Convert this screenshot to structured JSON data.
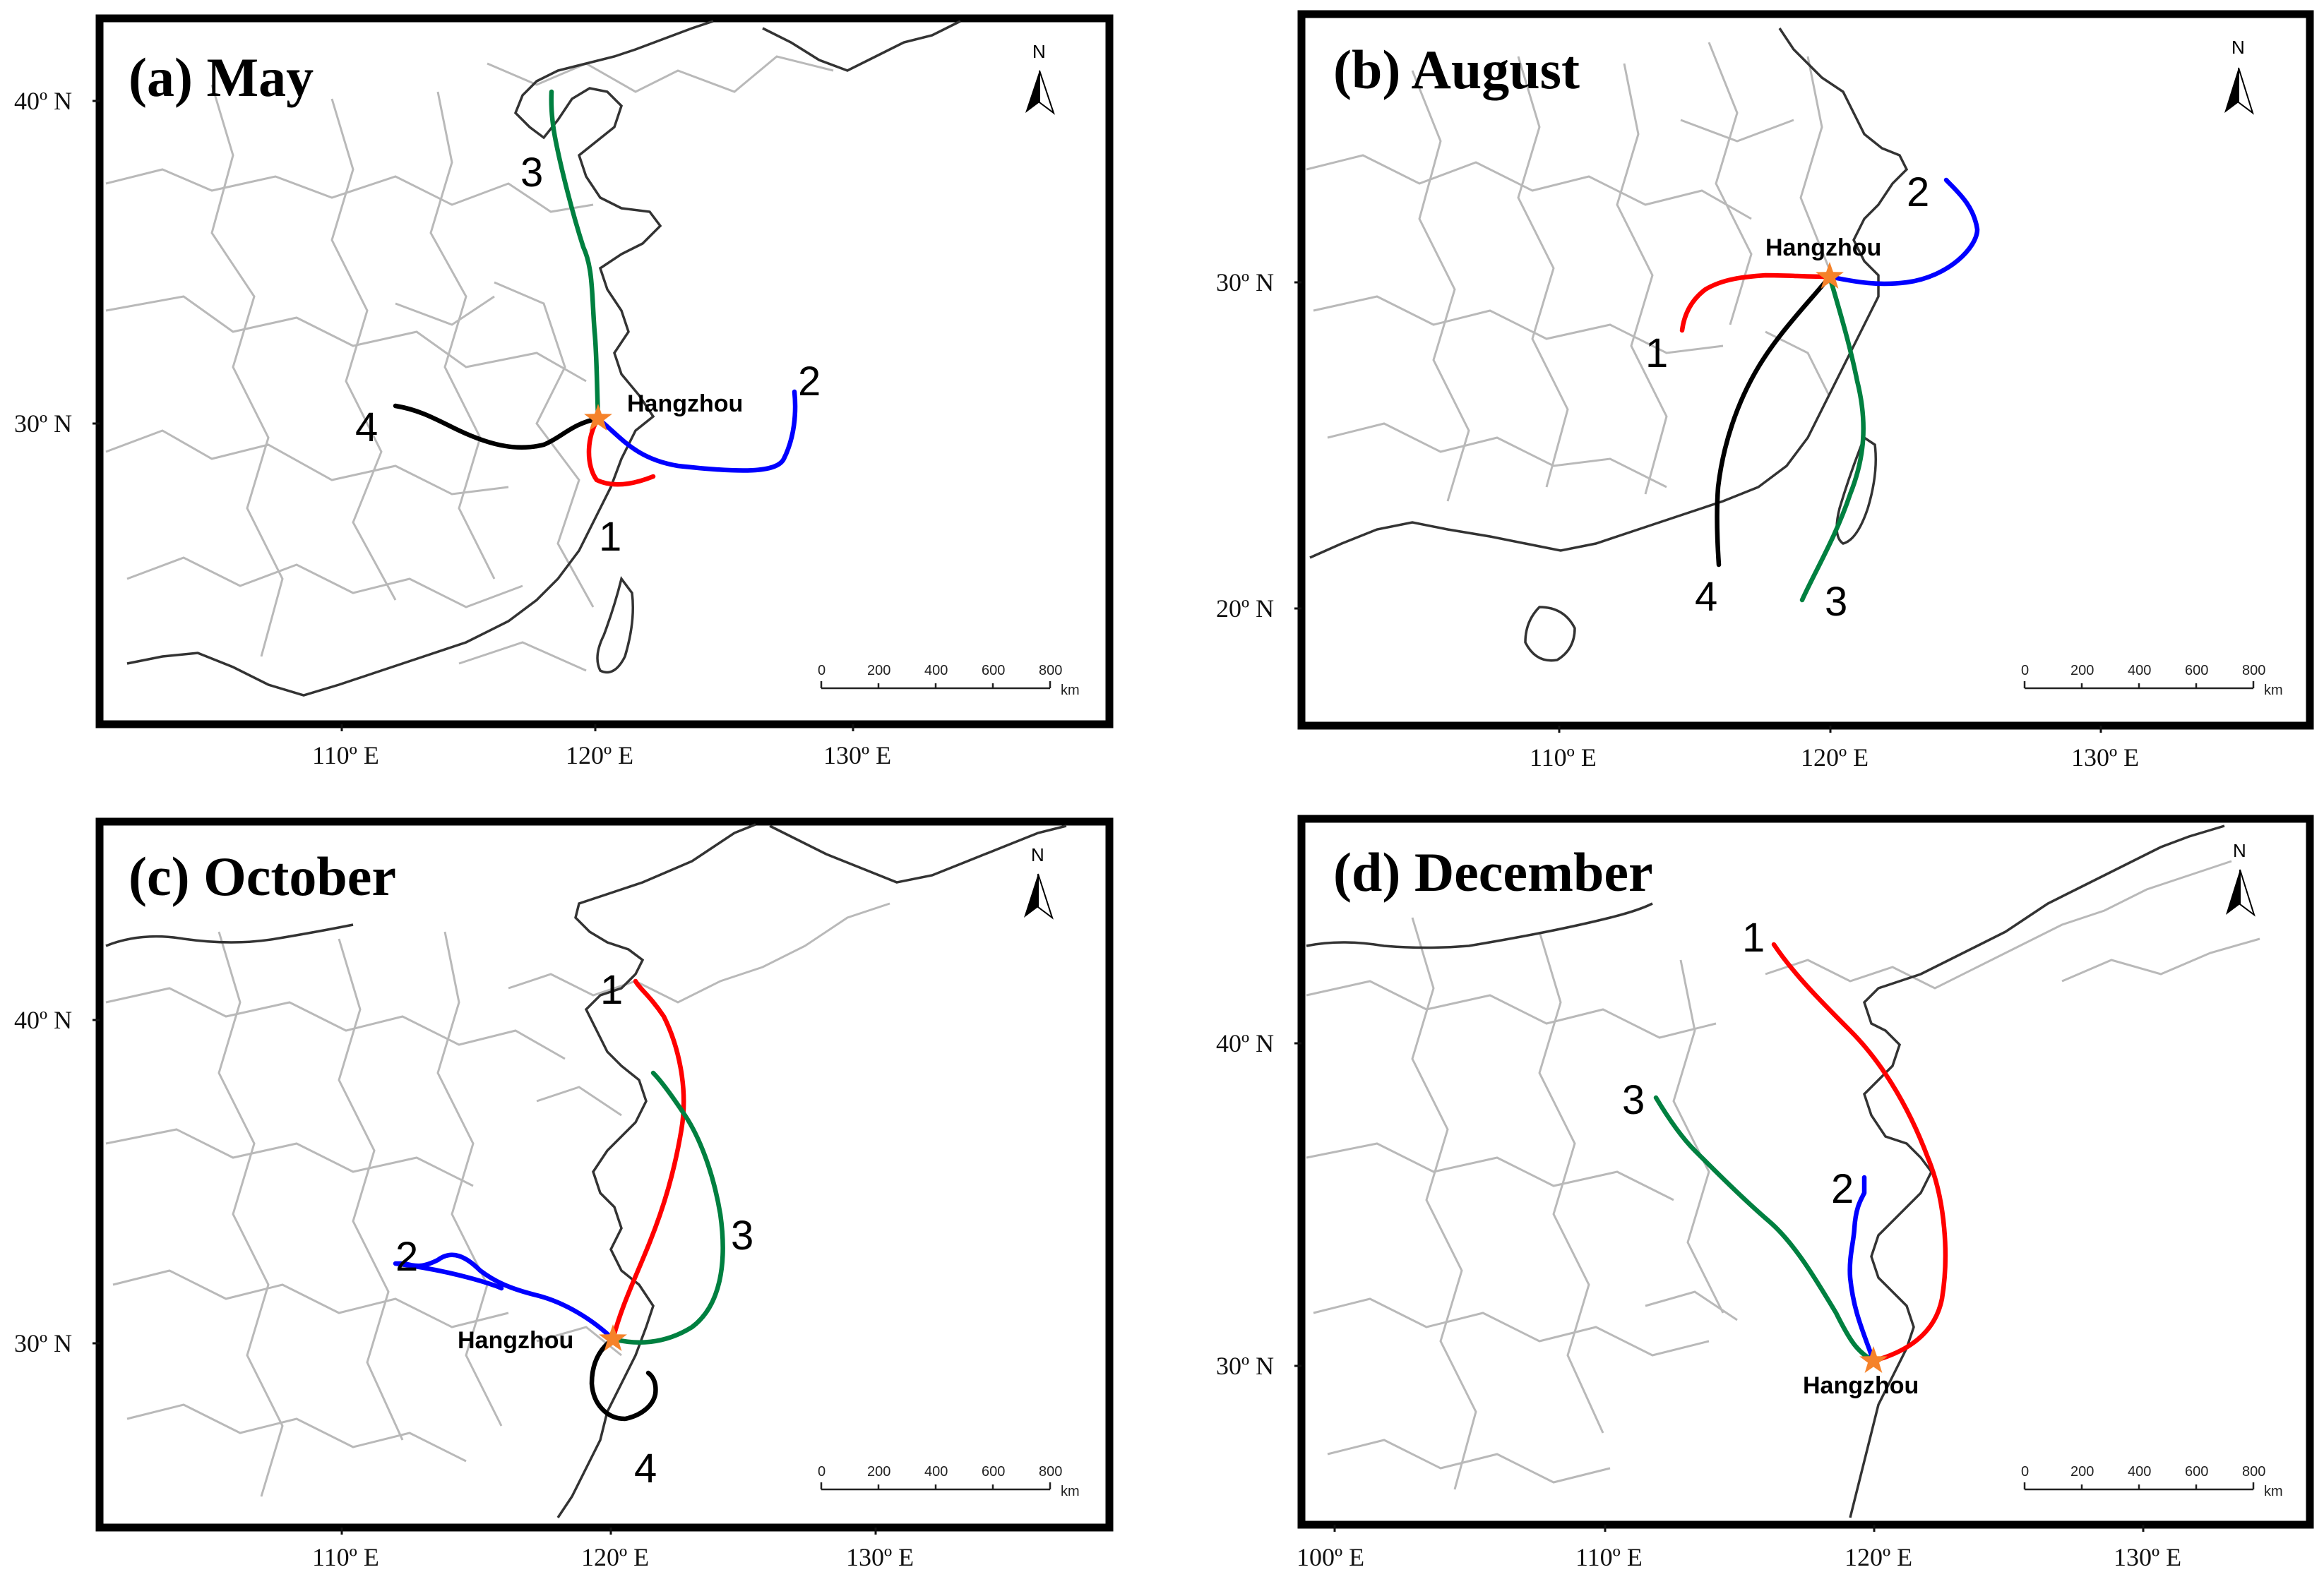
{
  "city": "Hangzhou",
  "north_label": "N",
  "scale": {
    "ticks": [
      "0",
      "200",
      "400",
      "600",
      "800"
    ],
    "unit": "km"
  },
  "colors": {
    "traj1": "#ff0000",
    "traj2": "#0000ff",
    "traj3": "#008040",
    "traj4": "#000000",
    "star": "#f5822a"
  },
  "panels": [
    {
      "title": "(a) May",
      "lat_labels": [
        "40º N",
        "30º N"
      ],
      "lon_labels": [
        "110º E",
        "120º E",
        "130º E"
      ],
      "traj_labels": [
        "1",
        "2",
        "3",
        "4"
      ]
    },
    {
      "title": "(b) August",
      "lat_labels": [
        "30º N",
        "20º N"
      ],
      "lon_labels": [
        "110º E",
        "120º E",
        "130º E"
      ],
      "traj_labels": [
        "1",
        "2",
        "3",
        "4"
      ]
    },
    {
      "title": "(c) October",
      "lat_labels": [
        "40º N",
        "30º N"
      ],
      "lon_labels": [
        "110º E",
        "120º E",
        "130º E"
      ],
      "traj_labels": [
        "1",
        "2",
        "3",
        "4"
      ]
    },
    {
      "title": "(d) December",
      "lat_labels": [
        "40º N",
        "30º N"
      ],
      "lon_labels": [
        "100º E",
        "110º E",
        "120º E",
        "130º E"
      ],
      "traj_labels": [
        "1",
        "2",
        "3"
      ]
    }
  ]
}
